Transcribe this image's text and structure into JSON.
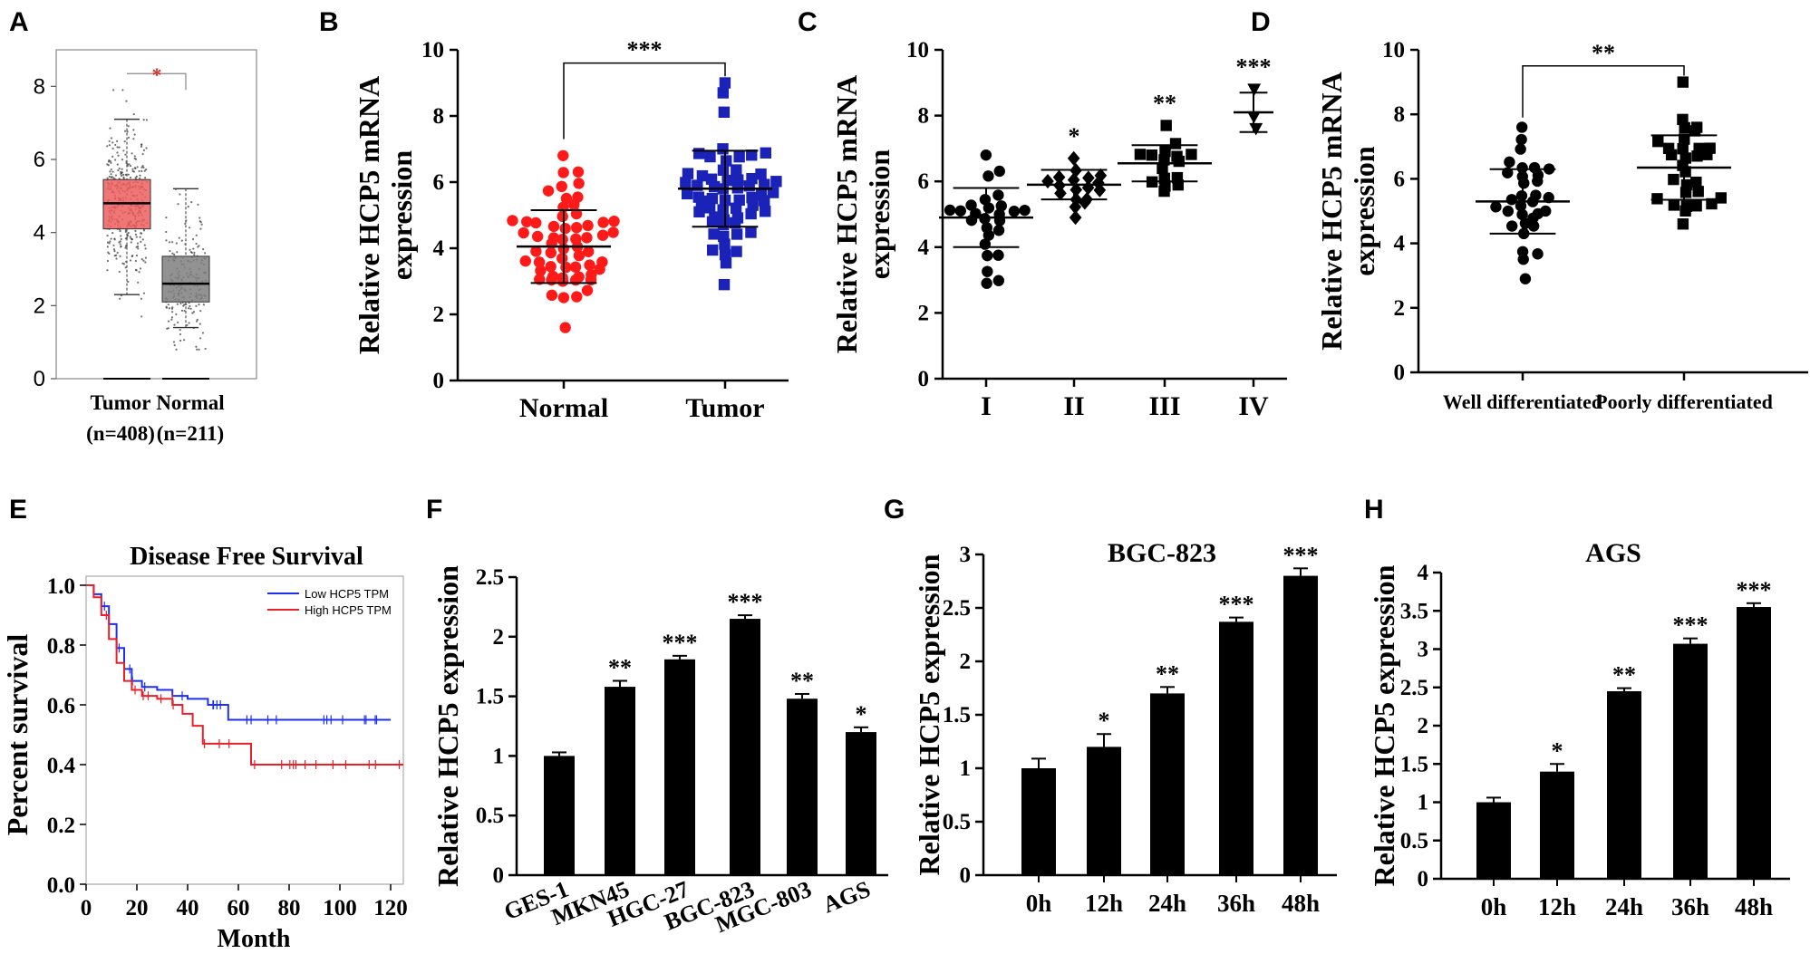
{
  "figure": {
    "panels": {
      "A": "A",
      "B": "B",
      "C": "C",
      "D": "D",
      "E": "E",
      "F": "F",
      "G": "G",
      "H": "H"
    }
  },
  "chart_data": [
    {
      "id": "A",
      "type": "box",
      "title": "",
      "xlabel": "",
      "ylabel": "",
      "ylim": [
        0,
        9
      ],
      "yticks": [
        "0",
        "2",
        "4",
        "6",
        "8"
      ],
      "categories": [
        "Tumor",
        "Normal"
      ],
      "counts": [
        "(n=408)",
        "(n=211)"
      ],
      "boxes": [
        {
          "name": "Tumor",
          "q1": 4.1,
          "median": 4.8,
          "q3": 5.45,
          "lower_whisker": 2.3,
          "upper_whisker": 7.1,
          "color": "#ee5e5e",
          "outlier_min": 0.0
        },
        {
          "name": "Normal",
          "q1": 2.1,
          "median": 2.6,
          "q3": 3.35,
          "lower_whisker": 1.4,
          "upper_whisker": 5.2,
          "color": "#7f7f7f",
          "outlier_min": 0.0
        }
      ],
      "significance": "*",
      "significance_color": "#d9302c"
    },
    {
      "id": "B",
      "type": "scatter",
      "ylabel_line1": "Relative HCP5 mRNA",
      "ylabel_line2": "expression",
      "ylim": [
        0,
        10
      ],
      "yticks": [
        "0",
        "2",
        "4",
        "6",
        "8",
        "10"
      ],
      "categories": [
        "Normal",
        "Tumor"
      ],
      "groups": [
        {
          "name": "Normal",
          "mean": 4.05,
          "sd": 1.1,
          "min": 1.6,
          "max": 6.8,
          "n": 60,
          "marker": "circle",
          "color": "#ff1a1a"
        },
        {
          "name": "Tumor",
          "mean": 5.8,
          "sd": 1.15,
          "min": 2.9,
          "max": 9.0,
          "n": 60,
          "marker": "square",
          "color": "#1a22b8"
        }
      ],
      "significance": "***"
    },
    {
      "id": "C",
      "type": "scatter",
      "ylabel_line1": "Relative HCP5 mRNA",
      "ylabel_line2": "expression",
      "ylim": [
        0,
        10
      ],
      "yticks": [
        "0",
        "2",
        "4",
        "6",
        "8",
        "10"
      ],
      "categories": [
        "I",
        "II",
        "III",
        "IV"
      ],
      "groups": [
        {
          "name": "I",
          "mean": 4.9,
          "sd": 0.9,
          "min": 2.9,
          "max": 6.8,
          "n": 26,
          "marker": "circle",
          "color": "#000000",
          "sig": ""
        },
        {
          "name": "II",
          "mean": 5.9,
          "sd": 0.45,
          "min": 4.9,
          "max": 6.7,
          "n": 18,
          "marker": "diamond",
          "color": "#000000",
          "sig": "*"
        },
        {
          "name": "III",
          "mean": 6.55,
          "sd": 0.55,
          "min": 5.7,
          "max": 7.7,
          "n": 16,
          "marker": "square",
          "color": "#000000",
          "sig": "**"
        },
        {
          "name": "IV",
          "mean": 8.1,
          "sd": 0.6,
          "min": 7.6,
          "max": 8.8,
          "n": 3,
          "marker": "triangle-down",
          "color": "#000000",
          "sig": "***"
        }
      ]
    },
    {
      "id": "D",
      "type": "scatter",
      "ylabel_line1": "Relative HCP5 mRNA",
      "ylabel_line2": "expression",
      "ylim": [
        0,
        10
      ],
      "yticks": [
        "0",
        "2",
        "4",
        "6",
        "8",
        "10"
      ],
      "categories": [
        "Well differentiated",
        "Poorly differentiated"
      ],
      "groups": [
        {
          "name": "Well differentiated",
          "mean": 5.3,
          "sd": 1.0,
          "min": 2.9,
          "max": 7.6,
          "n": 32,
          "marker": "circle",
          "color": "#000000"
        },
        {
          "name": "Poorly differentiated",
          "mean": 6.35,
          "sd": 1.0,
          "min": 4.6,
          "max": 9.0,
          "n": 30,
          "marker": "square",
          "color": "#000000"
        }
      ],
      "significance": "**"
    },
    {
      "id": "E",
      "type": "line",
      "title": "Disease Free Survival",
      "xlabel": "Month",
      "ylabel": "Percent survival",
      "xlim": [
        0,
        125
      ],
      "ylim": [
        0,
        1.0
      ],
      "xticks": [
        "0",
        "20",
        "40",
        "60",
        "80",
        "100",
        "120"
      ],
      "yticks": [
        "0.0",
        "0.2",
        "0.4",
        "0.6",
        "0.8",
        "1.0"
      ],
      "series": [
        {
          "name": "Low HCP5 TPM",
          "color": "#1f2ff0",
          "x": [
            0,
            3,
            6,
            9,
            12,
            15,
            18,
            22,
            28,
            34,
            40,
            48,
            56,
            120
          ],
          "y": [
            1.0,
            0.97,
            0.93,
            0.87,
            0.79,
            0.72,
            0.68,
            0.66,
            0.65,
            0.63,
            0.62,
            0.6,
            0.55,
            0.55
          ]
        },
        {
          "name": "High HCP5 TPM",
          "color": "#e8202a",
          "x": [
            0,
            3,
            6,
            9,
            12,
            15,
            18,
            22,
            28,
            34,
            38,
            42,
            46,
            56,
            62,
            65,
            125
          ],
          "y": [
            1.0,
            0.96,
            0.9,
            0.82,
            0.74,
            0.68,
            0.65,
            0.63,
            0.62,
            0.6,
            0.57,
            0.53,
            0.47,
            0.47,
            0.47,
            0.4,
            0.4
          ]
        }
      ]
    },
    {
      "id": "F",
      "type": "bar",
      "ylabel": "Relative HCP5 expression",
      "ylim": [
        0,
        2.5
      ],
      "yticks": [
        "0",
        "0.5",
        "1",
        "1.5",
        "2",
        "2.5"
      ],
      "categories": [
        "GES-1",
        "MKN45",
        "HGC-27",
        "BGC-823",
        "MGC-803",
        "AGS"
      ],
      "values": [
        1.0,
        1.58,
        1.81,
        2.15,
        1.48,
        1.2
      ],
      "errors": [
        0.03,
        0.05,
        0.03,
        0.03,
        0.04,
        0.04
      ],
      "sig": [
        "",
        "**",
        "***",
        "***",
        "**",
        "*"
      ]
    },
    {
      "id": "G",
      "type": "bar",
      "title": "BGC-823",
      "ylabel": "Relative HCP5 expression",
      "ylim": [
        0,
        3
      ],
      "yticks": [
        "0",
        "0.5",
        "1",
        "1.5",
        "2",
        "2.5",
        "3"
      ],
      "categories": [
        "0h",
        "12h",
        "24h",
        "36h",
        "48h"
      ],
      "values": [
        1.0,
        1.2,
        1.7,
        2.37,
        2.8
      ],
      "errors": [
        0.09,
        0.12,
        0.06,
        0.04,
        0.07
      ],
      "sig": [
        "",
        "*",
        "**",
        "***",
        "***"
      ]
    },
    {
      "id": "H",
      "type": "bar",
      "title": "AGS",
      "ylabel": "Relative HCP5 expression",
      "ylim": [
        0,
        4
      ],
      "yticks": [
        "0",
        "0.5",
        "1",
        "1.5",
        "2",
        "2.5",
        "3",
        "3.5",
        "4"
      ],
      "categories": [
        "0h",
        "12h",
        "24h",
        "36h",
        "48h"
      ],
      "values": [
        1.0,
        1.4,
        2.45,
        3.07,
        3.55
      ],
      "errors": [
        0.06,
        0.1,
        0.04,
        0.07,
        0.05
      ],
      "sig": [
        "",
        "*",
        "**",
        "***",
        "***"
      ]
    }
  ]
}
